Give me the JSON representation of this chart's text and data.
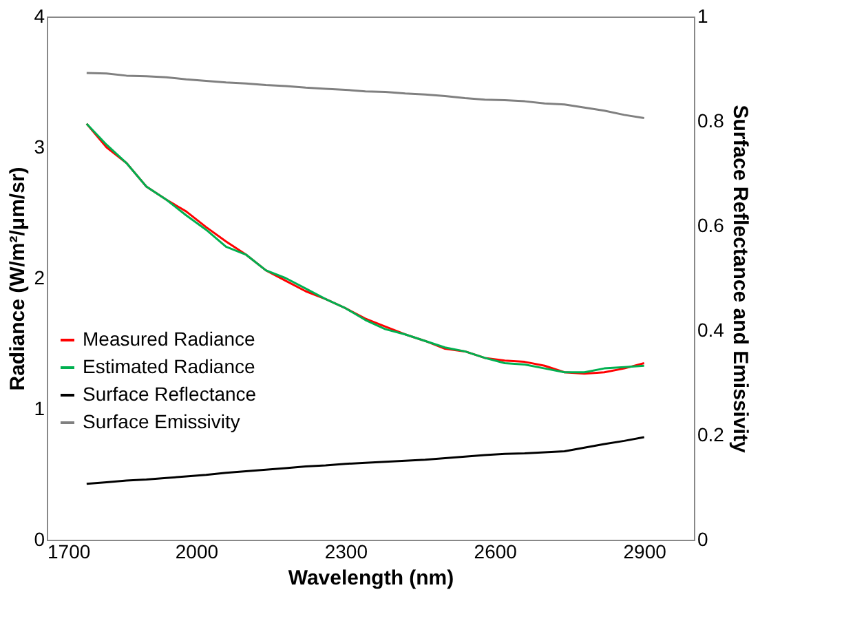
{
  "chart_data": {
    "type": "line",
    "xlabel": "Wavelength (nm)",
    "ylabel": "Radiance (W/m²/μm/sr)",
    "y2label": "Surface Reflectance and Emissivity",
    "x": [
      1780,
      1820,
      1860,
      1900,
      1940,
      1980,
      2020,
      2060,
      2100,
      2140,
      2180,
      2220,
      2260,
      2300,
      2340,
      2380,
      2420,
      2460,
      2500,
      2540,
      2580,
      2620,
      2660,
      2700,
      2740,
      2780,
      2820,
      2860,
      2900
    ],
    "series": [
      {
        "name": "Measured Radiance",
        "color": "#ff0000",
        "values": [
          3.18,
          3.0,
          2.88,
          2.7,
          2.6,
          2.51,
          2.39,
          2.28,
          2.18,
          2.06,
          1.98,
          1.9,
          1.84,
          1.77,
          1.69,
          1.63,
          1.57,
          1.52,
          1.46,
          1.44,
          1.39,
          1.37,
          1.36,
          1.33,
          1.28,
          1.27,
          1.28,
          1.31,
          1.35
        ]
      },
      {
        "name": "Estimated Radiance",
        "color": "#00b050",
        "values": [
          3.18,
          3.02,
          2.88,
          2.7,
          2.6,
          2.48,
          2.37,
          2.24,
          2.18,
          2.06,
          2.0,
          1.92,
          1.84,
          1.77,
          1.68,
          1.61,
          1.57,
          1.52,
          1.47,
          1.44,
          1.39,
          1.35,
          1.34,
          1.31,
          1.28,
          1.28,
          1.31,
          1.32,
          1.33
        ]
      },
      {
        "name": "Surface Reflectance",
        "color": "#000000",
        "axis": "y2",
        "values": [
          0.107,
          0.11,
          0.113,
          0.115,
          0.118,
          0.121,
          0.124,
          0.128,
          0.131,
          0.134,
          0.137,
          0.14,
          0.142,
          0.145,
          0.147,
          0.149,
          0.151,
          0.153,
          0.156,
          0.159,
          0.162,
          0.164,
          0.165,
          0.167,
          0.169,
          0.176,
          0.183,
          0.189,
          0.196
        ]
      },
      {
        "name": "Surface Emissivity",
        "color": "#808080",
        "axis": "y2",
        "values": [
          0.892,
          0.891,
          0.887,
          0.886,
          0.884,
          0.88,
          0.877,
          0.874,
          0.872,
          0.869,
          0.867,
          0.864,
          0.862,
          0.86,
          0.857,
          0.856,
          0.853,
          0.851,
          0.848,
          0.844,
          0.841,
          0.84,
          0.838,
          0.834,
          0.832,
          0.826,
          0.82,
          0.812,
          0.806
        ]
      }
    ],
    "xlim": [
      1700,
      3000
    ],
    "xticks": [
      1700,
      2000,
      2300,
      2600,
      2900
    ],
    "ylim": [
      0,
      4
    ],
    "yticks": [
      0,
      1,
      2,
      3,
      4
    ],
    "y2lim": [
      0,
      1
    ],
    "y2ticks": [
      0,
      0.2,
      0.4,
      0.6,
      0.8,
      1
    ],
    "grid": false,
    "legend": "left",
    "marker": "none",
    "line_style": "solid"
  }
}
